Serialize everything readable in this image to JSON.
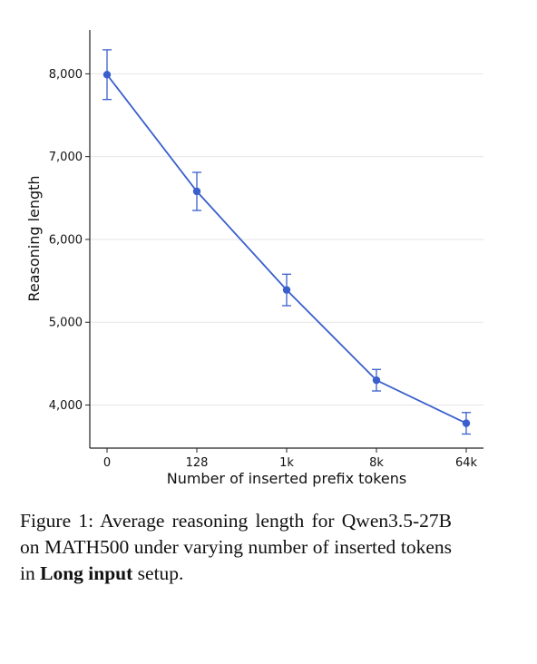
{
  "chart_data": {
    "type": "line",
    "categories": [
      "0",
      "128",
      "1k",
      "8k",
      "64k"
    ],
    "series": [
      {
        "values": [
          7990,
          6580,
          5390,
          4300,
          3780
        ],
        "error": [
          300,
          230,
          190,
          130,
          130
        ]
      }
    ],
    "xlabel": "Number of inserted prefix tokens",
    "ylabel": "Reasoning length",
    "y_ticks": [
      "4,000",
      "5,000",
      "6,000",
      "7,000",
      "8,000"
    ],
    "y_tick_values": [
      4000,
      5000,
      6000,
      7000,
      8000
    ],
    "ylim": [
      3480,
      8530
    ],
    "grid": true,
    "color": "#3a5fcd"
  },
  "caption": {
    "prefix": "Figure 1:  Average reasoning length for Qwen3.5-27B on MATH500 under varying number of inserted tokens in ",
    "bold": "Long input",
    "suffix": " setup."
  }
}
